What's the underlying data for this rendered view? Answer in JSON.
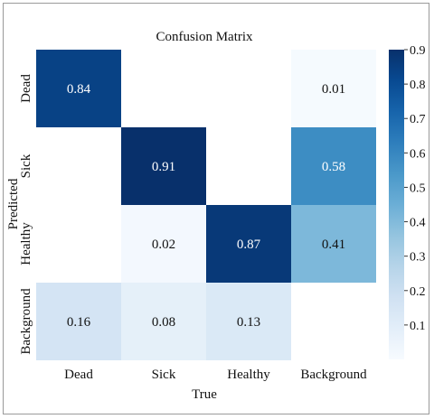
{
  "chart_data": {
    "type": "heatmap",
    "title": "Confusion Matrix",
    "xlabel": "True",
    "ylabel": "Predicted",
    "x_categories": [
      "Dead",
      "Sick",
      "Healthy",
      "Background"
    ],
    "y_categories": [
      "Dead",
      "Sick",
      "Healthy",
      "Background"
    ],
    "values": [
      [
        0.84,
        null,
        null,
        0.01
      ],
      [
        null,
        0.91,
        null,
        0.58
      ],
      [
        null,
        0.02,
        0.87,
        0.41
      ],
      [
        0.16,
        0.08,
        0.13,
        null
      ]
    ],
    "colorbar": {
      "range": [
        0,
        0.9
      ],
      "ticks": [
        "0.1",
        "0.2",
        "0.3",
        "0.4",
        "0.5",
        "0.6",
        "0.7",
        "0.8",
        "0.9"
      ],
      "colormap": "Blues"
    }
  }
}
